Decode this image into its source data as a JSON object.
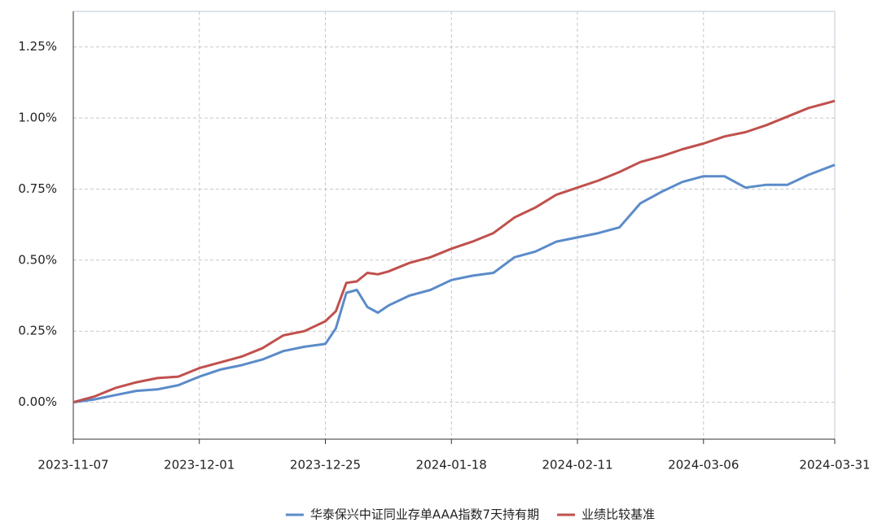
{
  "chart_data": {
    "type": "line",
    "x": [
      "2023-11-07",
      "2023-11-11",
      "2023-11-15",
      "2023-11-19",
      "2023-11-23",
      "2023-11-27",
      "2023-12-01",
      "2023-12-05",
      "2023-12-09",
      "2023-12-13",
      "2023-12-17",
      "2023-12-21",
      "2023-12-25",
      "2023-12-27",
      "2023-12-29",
      "2023-12-31",
      "2024-01-02",
      "2024-01-04",
      "2024-01-06",
      "2024-01-10",
      "2024-01-14",
      "2024-01-18",
      "2024-01-22",
      "2024-01-26",
      "2024-01-30",
      "2024-02-03",
      "2024-02-07",
      "2024-02-11",
      "2024-02-15",
      "2024-02-19",
      "2024-02-23",
      "2024-02-27",
      "2024-03-02",
      "2024-03-06",
      "2024-03-10",
      "2024-03-14",
      "2024-03-18",
      "2024-03-22",
      "2024-03-26",
      "2024-03-31"
    ],
    "series": [
      {
        "name": "华泰保兴中证同业存单AAA指数7天持有期",
        "color": "#5b8bc9",
        "values": [
          0,
          0.01,
          0.025,
          0.04,
          0.045,
          0.06,
          0.09,
          0.115,
          0.13,
          0.15,
          0.18,
          0.195,
          0.205,
          0.26,
          0.385,
          0.395,
          0.335,
          0.315,
          0.34,
          0.375,
          0.395,
          0.43,
          0.445,
          0.455,
          0.51,
          0.53,
          0.565,
          0.58,
          0.595,
          0.615,
          0.7,
          0.74,
          0.775,
          0.795,
          0.795,
          0.755,
          0.765,
          0.765,
          0.8,
          0.835
        ]
      },
      {
        "name": "业绩比较基准",
        "color": "#c0504d",
        "values": [
          0,
          0.02,
          0.05,
          0.07,
          0.085,
          0.09,
          0.12,
          0.14,
          0.16,
          0.19,
          0.235,
          0.25,
          0.285,
          0.32,
          0.42,
          0.425,
          0.455,
          0.45,
          0.46,
          0.49,
          0.51,
          0.54,
          0.565,
          0.595,
          0.65,
          0.685,
          0.73,
          0.755,
          0.78,
          0.81,
          0.845,
          0.865,
          0.89,
          0.91,
          0.935,
          0.95,
          0.975,
          1.005,
          1.035,
          1.06
        ]
      }
    ],
    "xlim": [
      "2023-11-07",
      "2024-03-31"
    ],
    "xticks": [
      "2023-11-07",
      "2023-12-01",
      "2023-12-25",
      "2024-01-18",
      "2024-02-11",
      "2024-03-06",
      "2024-03-31"
    ],
    "ylim": [
      -0.13,
      1.375
    ],
    "yticks": [
      {
        "value": 0,
        "label": "0.00%"
      },
      {
        "value": 0.25,
        "label": "0.25%"
      },
      {
        "value": 0.5,
        "label": "0.50%"
      },
      {
        "value": 0.75,
        "label": "0.75%"
      },
      {
        "value": 1,
        "label": "1.00%"
      },
      {
        "value": 1.25,
        "label": "1.25%"
      }
    ],
    "grid": true,
    "legend": "bottom"
  }
}
